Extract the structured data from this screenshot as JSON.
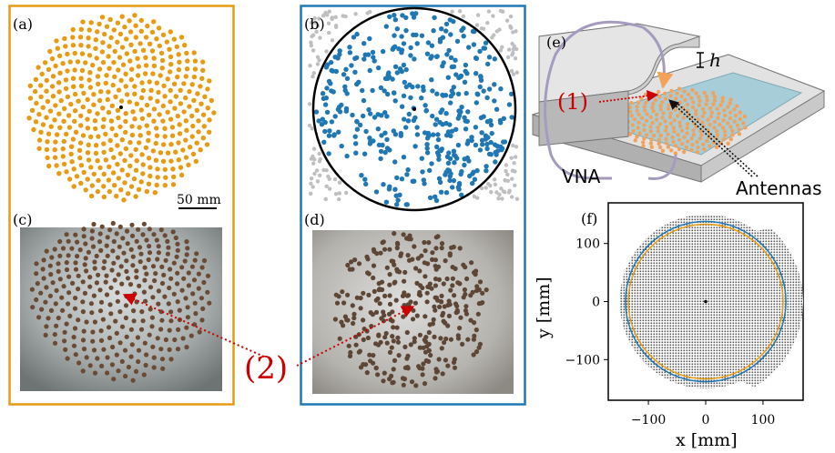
{
  "panels": {
    "a": {
      "label": "(a)"
    },
    "b": {
      "label": "(b)"
    },
    "c": {
      "label": "(c)"
    },
    "d": {
      "label": "(d)"
    },
    "e": {
      "label": "(e)"
    },
    "f": {
      "label": "(f)"
    }
  },
  "scale_bar": "50 mm",
  "callout_2": "(2)",
  "schematic": {
    "callout_1": "(1)",
    "height_label": "h",
    "vna_label": "VNA",
    "antennas_label": "Antennas"
  },
  "colors": {
    "orange": "#e69b13",
    "blue": "#1f77b4",
    "gray": "#bfbfbf",
    "red": "#cc0000"
  },
  "chart_data": {
    "type": "scatter",
    "xlabel": "x [mm]",
    "ylabel": "y [mm]",
    "x_ticks": [
      "−100",
      "0",
      "100"
    ],
    "y_ticks": [
      "100",
      "0",
      "−100"
    ],
    "xlim": [
      -170,
      170
    ],
    "ylim": [
      -170,
      170
    ],
    "circles": [
      {
        "color": "orange",
        "radius": 135
      },
      {
        "color": "blue",
        "radius": 140
      }
    ]
  }
}
